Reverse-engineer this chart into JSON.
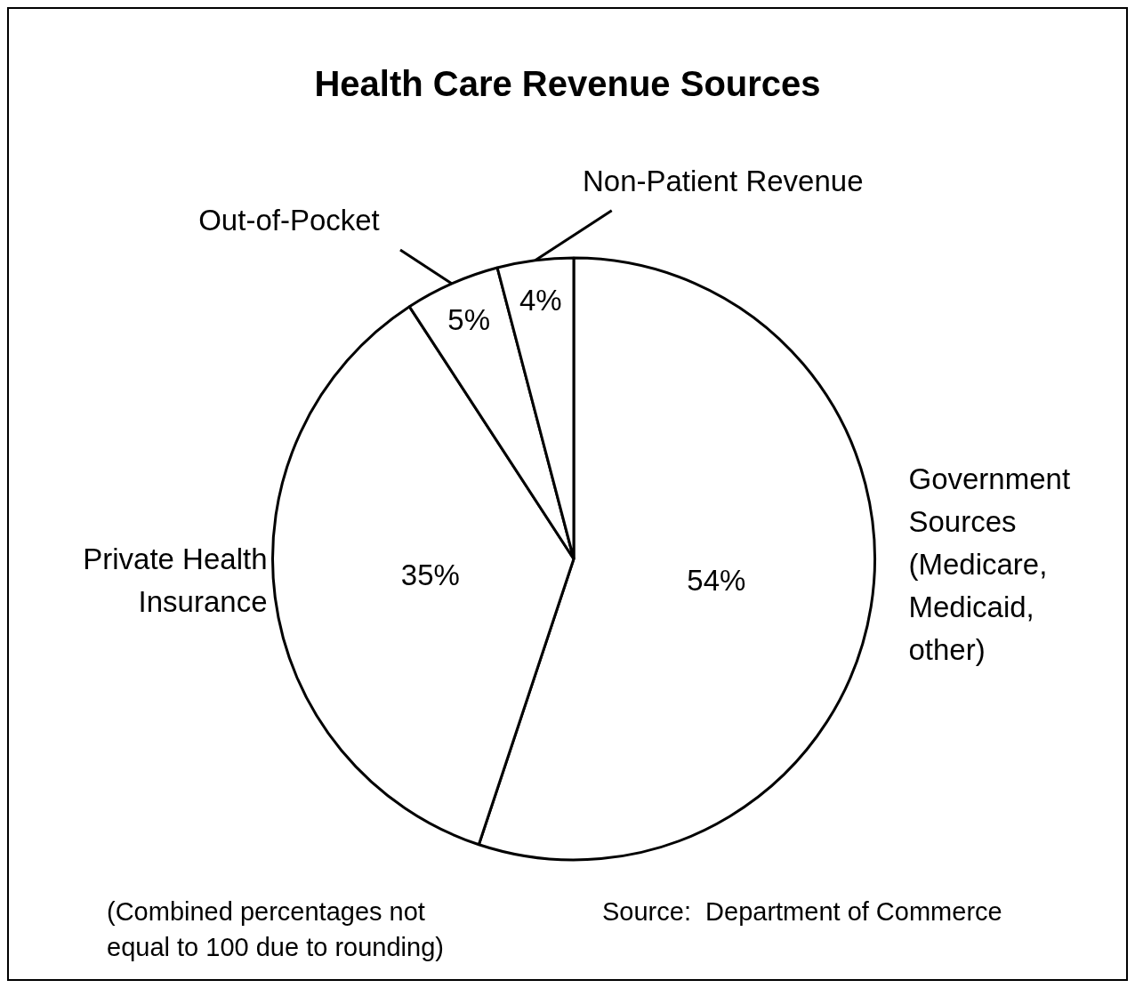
{
  "chart_data": {
    "type": "pie",
    "title": "Health Care Revenue Sources",
    "categories": [
      "Government Sources (Medicare, Medicaid, other)",
      "Private Health Insurance",
      "Out-of-Pocket",
      "Non-Patient Revenue"
    ],
    "values": [
      54,
      35,
      5,
      4
    ],
    "value_labels": [
      "54%",
      "35%",
      "5%",
      "4%"
    ],
    "colors": [
      "#ffffff",
      "#ffffff",
      "#ffffff",
      "#ffffff"
    ],
    "legend": false,
    "annotations": [
      "(Combined percentages not equal to 100 due to rounding)",
      "Source:  Department of Commerce"
    ]
  }
}
